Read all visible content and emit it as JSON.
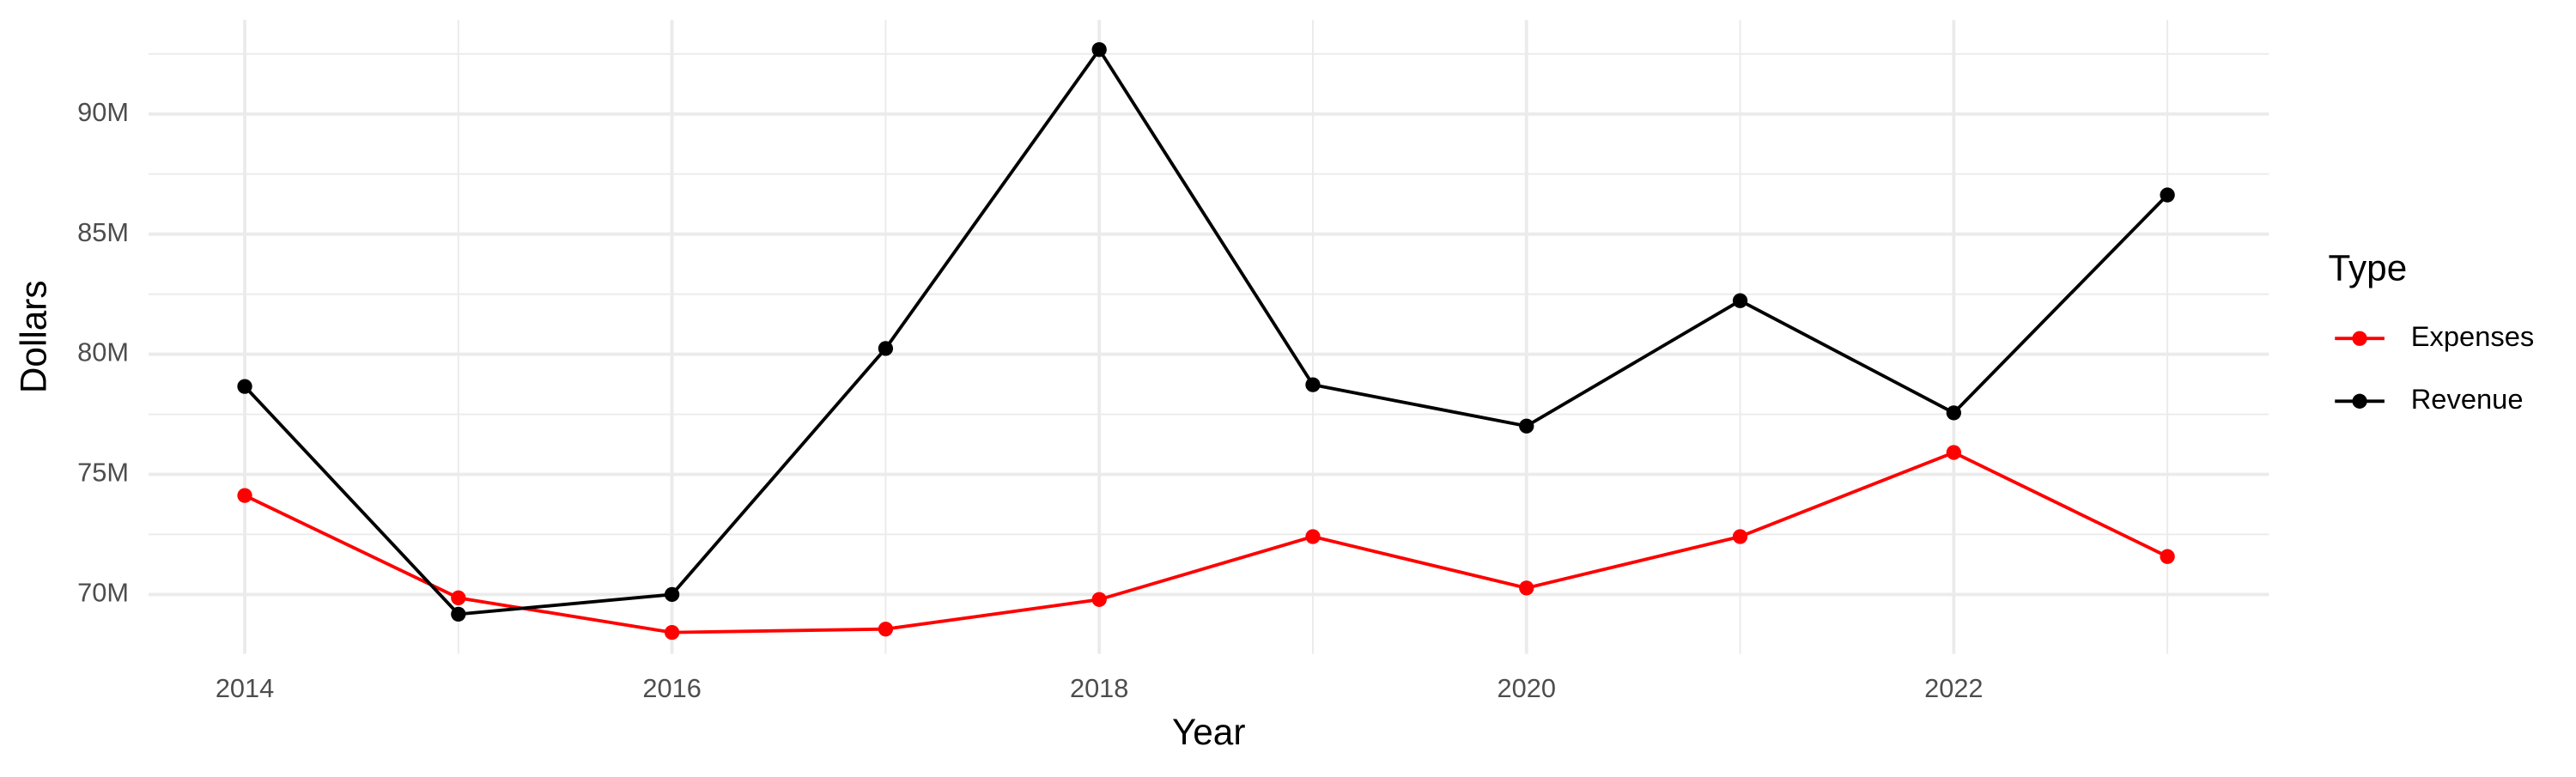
{
  "chart_data": {
    "type": "line",
    "x_label": "Year",
    "y_label": "Dollars",
    "legend_title": "Type",
    "legend_position": "right",
    "grid": true,
    "x": [
      2014,
      2015,
      2016,
      2017,
      2018,
      2019,
      2020,
      2021,
      2022,
      2023
    ],
    "series": [
      {
        "name": "Expenses",
        "color": "#ff0000",
        "values": [
          74120000,
          69860000,
          68420000,
          68560000,
          69790000,
          72410000,
          70270000,
          72410000,
          75910000,
          71580000
        ]
      },
      {
        "name": "Revenue",
        "color": "#000000",
        "values": [
          78660000,
          69180000,
          70000000,
          80240000,
          92680000,
          78730000,
          77010000,
          82230000,
          77560000,
          86630000
        ]
      }
    ],
    "xlim": [
      2013.55,
      2023.475
    ],
    "xticks": [
      2014,
      2016,
      2018,
      2020,
      2022
    ],
    "ylim": [
      67530000,
      93920000
    ],
    "yticks": [
      {
        "value": 70000000,
        "label": "70M"
      },
      {
        "value": 75000000,
        "label": "75M"
      },
      {
        "value": 80000000,
        "label": "80M"
      },
      {
        "value": 85000000,
        "label": "85M"
      },
      {
        "value": 90000000,
        "label": "90M"
      }
    ]
  }
}
